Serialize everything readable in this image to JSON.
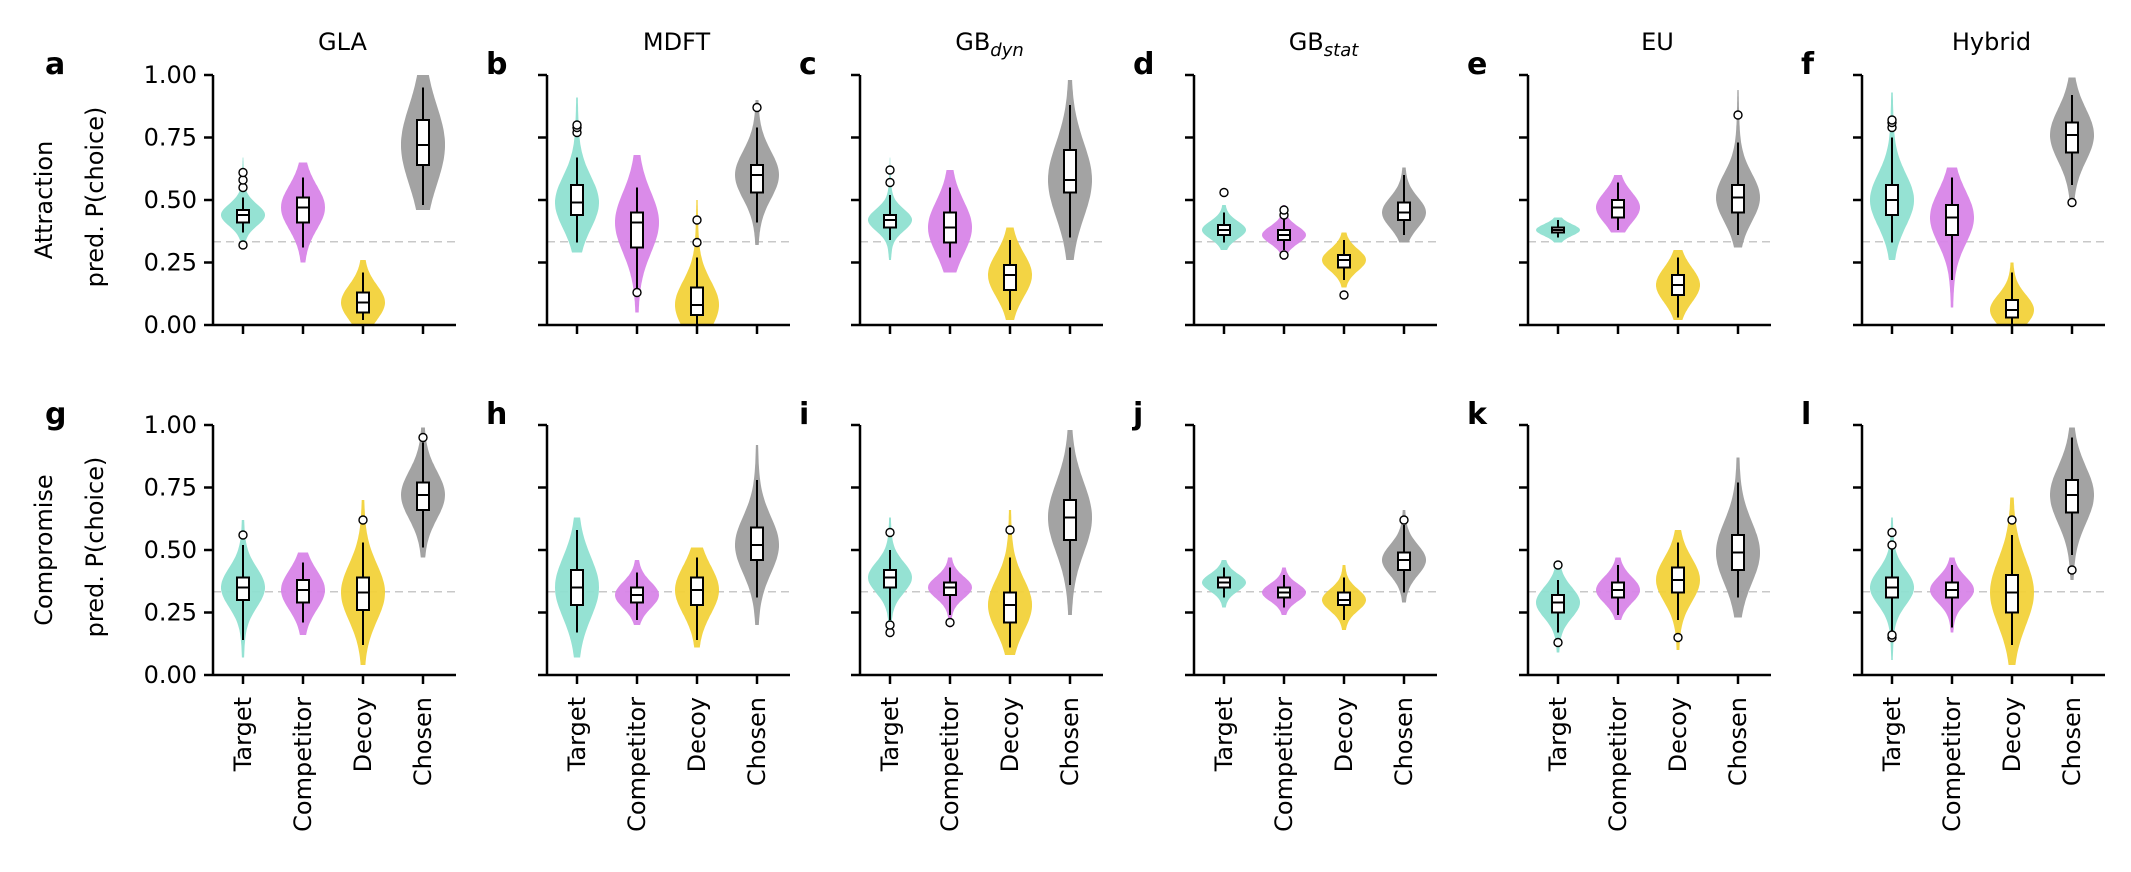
{
  "colors": {
    "Target": "#8fe0d1",
    "Competitor": "#d885e8",
    "Decoy": "#f2d23a",
    "Chosen": "#9e9e9e",
    "chance_line": "#c8c8c8"
  },
  "chart_data": [
    {
      "type": "violin",
      "panel": "a",
      "title": "GLA",
      "title_main": "GLA",
      "title_sub": "",
      "row": "Attraction",
      "ylabel": "pred. P(choice)",
      "ylim": [
        0,
        1
      ],
      "yticks": [
        "0.00",
        "0.25",
        "0.50",
        "0.75",
        "1.00"
      ],
      "chance_line": 0.333,
      "categories": [
        "Target",
        "Competitor",
        "Decoy",
        "Chosen"
      ],
      "series": [
        {
          "name": "Target",
          "median": 0.44,
          "q1": 0.41,
          "q3": 0.46,
          "whisker_low": 0.37,
          "whisker_high": 0.51,
          "violin_min": 0.32,
          "violin_max": 0.67,
          "outliers": [
            0.32,
            0.55,
            0.58,
            0.61
          ]
        },
        {
          "name": "Competitor",
          "median": 0.47,
          "q1": 0.41,
          "q3": 0.51,
          "whisker_low": 0.31,
          "whisker_high": 0.59,
          "violin_min": 0.25,
          "violin_max": 0.65,
          "outliers": []
        },
        {
          "name": "Decoy",
          "median": 0.09,
          "q1": 0.05,
          "q3": 0.13,
          "whisker_low": 0.02,
          "whisker_high": 0.21,
          "violin_min": 0.0,
          "violin_max": 0.26,
          "outliers": []
        },
        {
          "name": "Chosen",
          "median": 0.72,
          "q1": 0.64,
          "q3": 0.82,
          "whisker_low": 0.48,
          "whisker_high": 0.95,
          "violin_min": 0.46,
          "violin_max": 1.0,
          "outliers": []
        }
      ]
    },
    {
      "type": "violin",
      "panel": "b",
      "title": "MDFT",
      "title_main": "MDFT",
      "title_sub": "",
      "row": "Attraction",
      "ylim": [
        0,
        1
      ],
      "chance_line": 0.333,
      "categories": [
        "Target",
        "Competitor",
        "Decoy",
        "Chosen"
      ],
      "series": [
        {
          "name": "Target",
          "median": 0.49,
          "q1": 0.44,
          "q3": 0.56,
          "whisker_low": 0.33,
          "whisker_high": 0.67,
          "violin_min": 0.29,
          "violin_max": 0.91,
          "outliers": [
            0.77,
            0.79,
            0.8
          ]
        },
        {
          "name": "Competitor",
          "median": 0.41,
          "q1": 0.31,
          "q3": 0.45,
          "whisker_low": 0.13,
          "whisker_high": 0.55,
          "violin_min": 0.05,
          "violin_max": 0.68,
          "outliers": [
            0.13
          ]
        },
        {
          "name": "Decoy",
          "median": 0.08,
          "q1": 0.04,
          "q3": 0.15,
          "whisker_low": 0.0,
          "whisker_high": 0.27,
          "violin_min": 0.0,
          "violin_max": 0.5,
          "outliers": [
            0.33,
            0.42
          ]
        },
        {
          "name": "Chosen",
          "median": 0.6,
          "q1": 0.53,
          "q3": 0.64,
          "whisker_low": 0.41,
          "whisker_high": 0.79,
          "violin_min": 0.32,
          "violin_max": 0.9,
          "outliers": [
            0.87
          ]
        }
      ]
    },
    {
      "type": "violin",
      "panel": "c",
      "title": "GBdyn",
      "title_main": "GB",
      "title_sub": "dyn",
      "row": "Attraction",
      "ylim": [
        0,
        1
      ],
      "chance_line": 0.333,
      "categories": [
        "Target",
        "Competitor",
        "Decoy",
        "Chosen"
      ],
      "series": [
        {
          "name": "Target",
          "median": 0.42,
          "q1": 0.39,
          "q3": 0.44,
          "whisker_low": 0.34,
          "whisker_high": 0.52,
          "violin_min": 0.26,
          "violin_max": 0.67,
          "outliers": [
            0.57,
            0.62
          ]
        },
        {
          "name": "Competitor",
          "median": 0.39,
          "q1": 0.33,
          "q3": 0.45,
          "whisker_low": 0.27,
          "whisker_high": 0.55,
          "violin_min": 0.21,
          "violin_max": 0.62,
          "outliers": []
        },
        {
          "name": "Decoy",
          "median": 0.2,
          "q1": 0.14,
          "q3": 0.24,
          "whisker_low": 0.06,
          "whisker_high": 0.34,
          "violin_min": 0.02,
          "violin_max": 0.39,
          "outliers": []
        },
        {
          "name": "Chosen",
          "median": 0.58,
          "q1": 0.53,
          "q3": 0.7,
          "whisker_low": 0.35,
          "whisker_high": 0.88,
          "violin_min": 0.26,
          "violin_max": 0.98,
          "outliers": []
        }
      ]
    },
    {
      "type": "violin",
      "panel": "d",
      "title": "GBstat",
      "title_main": "GB",
      "title_sub": "stat",
      "row": "Attraction",
      "ylim": [
        0,
        1
      ],
      "chance_line": 0.333,
      "categories": [
        "Target",
        "Competitor",
        "Decoy",
        "Chosen"
      ],
      "series": [
        {
          "name": "Target",
          "median": 0.38,
          "q1": 0.36,
          "q3": 0.4,
          "whisker_low": 0.33,
          "whisker_high": 0.45,
          "violin_min": 0.3,
          "violin_max": 0.48,
          "outliers": [
            0.53
          ]
        },
        {
          "name": "Competitor",
          "median": 0.36,
          "q1": 0.34,
          "q3": 0.38,
          "whisker_low": 0.3,
          "whisker_high": 0.43,
          "violin_min": 0.26,
          "violin_max": 0.48,
          "outliers": [
            0.28,
            0.44,
            0.46
          ]
        },
        {
          "name": "Decoy",
          "median": 0.26,
          "q1": 0.23,
          "q3": 0.28,
          "whisker_low": 0.18,
          "whisker_high": 0.34,
          "violin_min": 0.15,
          "violin_max": 0.37,
          "outliers": [
            0.12
          ]
        },
        {
          "name": "Chosen",
          "median": 0.45,
          "q1": 0.42,
          "q3": 0.49,
          "whisker_low": 0.36,
          "whisker_high": 0.6,
          "violin_min": 0.33,
          "violin_max": 0.63,
          "outliers": []
        }
      ]
    },
    {
      "type": "violin",
      "panel": "e",
      "title": "EU",
      "title_main": "EU",
      "title_sub": "",
      "row": "Attraction",
      "ylim": [
        0,
        1
      ],
      "chance_line": 0.333,
      "categories": [
        "Target",
        "Competitor",
        "Decoy",
        "Chosen"
      ],
      "series": [
        {
          "name": "Target",
          "median": 0.38,
          "q1": 0.37,
          "q3": 0.39,
          "whisker_low": 0.35,
          "whisker_high": 0.42,
          "violin_min": 0.33,
          "violin_max": 0.43,
          "outliers": []
        },
        {
          "name": "Competitor",
          "median": 0.47,
          "q1": 0.43,
          "q3": 0.5,
          "whisker_low": 0.38,
          "whisker_high": 0.57,
          "violin_min": 0.37,
          "violin_max": 0.6,
          "outliers": []
        },
        {
          "name": "Decoy",
          "median": 0.16,
          "q1": 0.12,
          "q3": 0.2,
          "whisker_low": 0.03,
          "whisker_high": 0.27,
          "violin_min": 0.02,
          "violin_max": 0.3,
          "outliers": []
        },
        {
          "name": "Chosen",
          "median": 0.51,
          "q1": 0.45,
          "q3": 0.56,
          "whisker_low": 0.36,
          "whisker_high": 0.73,
          "violin_min": 0.31,
          "violin_max": 0.94,
          "outliers": [
            0.84
          ]
        }
      ]
    },
    {
      "type": "violin",
      "panel": "f",
      "title": "Hybrid",
      "title_main": "Hybrid",
      "title_sub": "",
      "row": "Attraction",
      "ylim": [
        0,
        1
      ],
      "chance_line": 0.333,
      "categories": [
        "Target",
        "Competitor",
        "Decoy",
        "Chosen"
      ],
      "series": [
        {
          "name": "Target",
          "median": 0.5,
          "q1": 0.44,
          "q3": 0.56,
          "whisker_low": 0.33,
          "whisker_high": 0.75,
          "violin_min": 0.26,
          "violin_max": 0.93,
          "outliers": [
            0.79,
            0.81,
            0.82
          ]
        },
        {
          "name": "Competitor",
          "median": 0.43,
          "q1": 0.36,
          "q3": 0.48,
          "whisker_low": 0.18,
          "whisker_high": 0.59,
          "violin_min": 0.07,
          "violin_max": 0.63,
          "outliers": []
        },
        {
          "name": "Decoy",
          "median": 0.06,
          "q1": 0.03,
          "q3": 0.1,
          "whisker_low": 0.0,
          "whisker_high": 0.21,
          "violin_min": 0.0,
          "violin_max": 0.25,
          "outliers": []
        },
        {
          "name": "Chosen",
          "median": 0.76,
          "q1": 0.69,
          "q3": 0.81,
          "whisker_low": 0.56,
          "whisker_high": 0.92,
          "violin_min": 0.5,
          "violin_max": 0.99,
          "outliers": [
            0.49
          ]
        }
      ]
    },
    {
      "type": "violin",
      "panel": "g",
      "title": "",
      "title_main": "",
      "title_sub": "",
      "row": "Compromise",
      "ylabel": "pred. P(choice)",
      "ylim": [
        0,
        1
      ],
      "yticks": [
        "0.00",
        "0.25",
        "0.50",
        "0.75",
        "1.00"
      ],
      "chance_line": 0.333,
      "categories": [
        "Target",
        "Competitor",
        "Decoy",
        "Chosen"
      ],
      "series": [
        {
          "name": "Target",
          "median": 0.35,
          "q1": 0.3,
          "q3": 0.39,
          "whisker_low": 0.14,
          "whisker_high": 0.52,
          "violin_min": 0.07,
          "violin_max": 0.62,
          "outliers": [
            0.56
          ]
        },
        {
          "name": "Competitor",
          "median": 0.34,
          "q1": 0.29,
          "q3": 0.38,
          "whisker_low": 0.21,
          "whisker_high": 0.45,
          "violin_min": 0.16,
          "violin_max": 0.49,
          "outliers": []
        },
        {
          "name": "Decoy",
          "median": 0.33,
          "q1": 0.26,
          "q3": 0.39,
          "whisker_low": 0.12,
          "whisker_high": 0.53,
          "violin_min": 0.04,
          "violin_max": 0.7,
          "outliers": [
            0.62
          ]
        },
        {
          "name": "Chosen",
          "median": 0.72,
          "q1": 0.66,
          "q3": 0.77,
          "whisker_low": 0.51,
          "whisker_high": 0.93,
          "violin_min": 0.47,
          "violin_max": 0.99,
          "outliers": [
            0.95
          ]
        }
      ]
    },
    {
      "type": "violin",
      "panel": "h",
      "title": "",
      "title_main": "",
      "title_sub": "",
      "row": "Compromise",
      "ylim": [
        0,
        1
      ],
      "chance_line": 0.333,
      "categories": [
        "Target",
        "Competitor",
        "Decoy",
        "Chosen"
      ],
      "series": [
        {
          "name": "Target",
          "median": 0.35,
          "q1": 0.28,
          "q3": 0.42,
          "whisker_low": 0.17,
          "whisker_high": 0.58,
          "violin_min": 0.07,
          "violin_max": 0.63,
          "outliers": []
        },
        {
          "name": "Competitor",
          "median": 0.32,
          "q1": 0.29,
          "q3": 0.35,
          "whisker_low": 0.22,
          "whisker_high": 0.41,
          "violin_min": 0.2,
          "violin_max": 0.46,
          "outliers": []
        },
        {
          "name": "Decoy",
          "median": 0.34,
          "q1": 0.28,
          "q3": 0.39,
          "whisker_low": 0.14,
          "whisker_high": 0.47,
          "violin_min": 0.11,
          "violin_max": 0.51,
          "outliers": []
        },
        {
          "name": "Chosen",
          "median": 0.52,
          "q1": 0.46,
          "q3": 0.59,
          "whisker_low": 0.31,
          "whisker_high": 0.78,
          "violin_min": 0.2,
          "violin_max": 0.92,
          "outliers": []
        }
      ]
    },
    {
      "type": "violin",
      "panel": "i",
      "title": "",
      "title_main": "",
      "title_sub": "",
      "row": "Compromise",
      "ylim": [
        0,
        1
      ],
      "chance_line": 0.333,
      "categories": [
        "Target",
        "Competitor",
        "Decoy",
        "Chosen"
      ],
      "series": [
        {
          "name": "Target",
          "median": 0.39,
          "q1": 0.35,
          "q3": 0.42,
          "whisker_low": 0.22,
          "whisker_high": 0.5,
          "violin_min": 0.17,
          "violin_max": 0.63,
          "outliers": [
            0.17,
            0.2,
            0.57
          ]
        },
        {
          "name": "Competitor",
          "median": 0.35,
          "q1": 0.32,
          "q3": 0.37,
          "whisker_low": 0.24,
          "whisker_high": 0.43,
          "violin_min": 0.19,
          "violin_max": 0.47,
          "outliers": [
            0.21
          ]
        },
        {
          "name": "Decoy",
          "median": 0.28,
          "q1": 0.21,
          "q3": 0.33,
          "whisker_low": 0.11,
          "whisker_high": 0.47,
          "violin_min": 0.08,
          "violin_max": 0.66,
          "outliers": [
            0.58
          ]
        },
        {
          "name": "Chosen",
          "median": 0.63,
          "q1": 0.54,
          "q3": 0.7,
          "whisker_low": 0.36,
          "whisker_high": 0.91,
          "violin_min": 0.24,
          "violin_max": 0.98,
          "outliers": []
        }
      ]
    },
    {
      "type": "violin",
      "panel": "j",
      "title": "",
      "title_main": "",
      "title_sub": "",
      "row": "Compromise",
      "ylim": [
        0,
        1
      ],
      "chance_line": 0.333,
      "categories": [
        "Target",
        "Competitor",
        "Decoy",
        "Chosen"
      ],
      "series": [
        {
          "name": "Target",
          "median": 0.37,
          "q1": 0.35,
          "q3": 0.39,
          "whisker_low": 0.31,
          "whisker_high": 0.43,
          "violin_min": 0.27,
          "violin_max": 0.46,
          "outliers": []
        },
        {
          "name": "Competitor",
          "median": 0.33,
          "q1": 0.31,
          "q3": 0.35,
          "whisker_low": 0.27,
          "whisker_high": 0.4,
          "violin_min": 0.24,
          "violin_max": 0.43,
          "outliers": []
        },
        {
          "name": "Decoy",
          "median": 0.3,
          "q1": 0.28,
          "q3": 0.33,
          "whisker_low": 0.22,
          "whisker_high": 0.39,
          "violin_min": 0.18,
          "violin_max": 0.44,
          "outliers": []
        },
        {
          "name": "Chosen",
          "median": 0.46,
          "q1": 0.42,
          "q3": 0.49,
          "whisker_low": 0.33,
          "whisker_high": 0.6,
          "violin_min": 0.29,
          "violin_max": 0.66,
          "outliers": [
            0.62
          ]
        }
      ]
    },
    {
      "type": "violin",
      "panel": "k",
      "title": "",
      "title_main": "",
      "title_sub": "",
      "row": "Compromise",
      "ylim": [
        0,
        1
      ],
      "chance_line": 0.333,
      "categories": [
        "Target",
        "Competitor",
        "Decoy",
        "Chosen"
      ],
      "series": [
        {
          "name": "Target",
          "median": 0.29,
          "q1": 0.25,
          "q3": 0.32,
          "whisker_low": 0.17,
          "whisker_high": 0.38,
          "violin_min": 0.09,
          "violin_max": 0.43,
          "outliers": [
            0.13,
            0.44
          ]
        },
        {
          "name": "Competitor",
          "median": 0.34,
          "q1": 0.31,
          "q3": 0.37,
          "whisker_low": 0.24,
          "whisker_high": 0.44,
          "violin_min": 0.22,
          "violin_max": 0.47,
          "outliers": []
        },
        {
          "name": "Decoy",
          "median": 0.38,
          "q1": 0.33,
          "q3": 0.43,
          "whisker_low": 0.22,
          "whisker_high": 0.53,
          "violin_min": 0.1,
          "violin_max": 0.58,
          "outliers": [
            0.15
          ]
        },
        {
          "name": "Chosen",
          "median": 0.49,
          "q1": 0.42,
          "q3": 0.56,
          "whisker_low": 0.31,
          "whisker_high": 0.77,
          "violin_min": 0.23,
          "violin_max": 0.87,
          "outliers": []
        }
      ]
    },
    {
      "type": "violin",
      "panel": "l",
      "title": "",
      "title_main": "",
      "title_sub": "",
      "row": "Compromise",
      "ylim": [
        0,
        1
      ],
      "chance_line": 0.333,
      "categories": [
        "Target",
        "Competitor",
        "Decoy",
        "Chosen"
      ],
      "series": [
        {
          "name": "Target",
          "median": 0.35,
          "q1": 0.31,
          "q3": 0.39,
          "whisker_low": 0.17,
          "whisker_high": 0.53,
          "violin_min": 0.06,
          "violin_max": 0.63,
          "outliers": [
            0.15,
            0.16,
            0.52,
            0.57
          ]
        },
        {
          "name": "Competitor",
          "median": 0.34,
          "q1": 0.31,
          "q3": 0.37,
          "whisker_low": 0.19,
          "whisker_high": 0.44,
          "violin_min": 0.17,
          "violin_max": 0.47,
          "outliers": []
        },
        {
          "name": "Decoy",
          "median": 0.33,
          "q1": 0.25,
          "q3": 0.4,
          "whisker_low": 0.12,
          "whisker_high": 0.56,
          "violin_min": 0.04,
          "violin_max": 0.71,
          "outliers": [
            0.62
          ]
        },
        {
          "name": "Chosen",
          "median": 0.72,
          "q1": 0.65,
          "q3": 0.78,
          "whisker_low": 0.48,
          "whisker_high": 0.95,
          "violin_min": 0.38,
          "violin_max": 0.99,
          "outliers": [
            0.42
          ]
        }
      ]
    }
  ],
  "row_labels": [
    "Attraction",
    "Compromise"
  ]
}
